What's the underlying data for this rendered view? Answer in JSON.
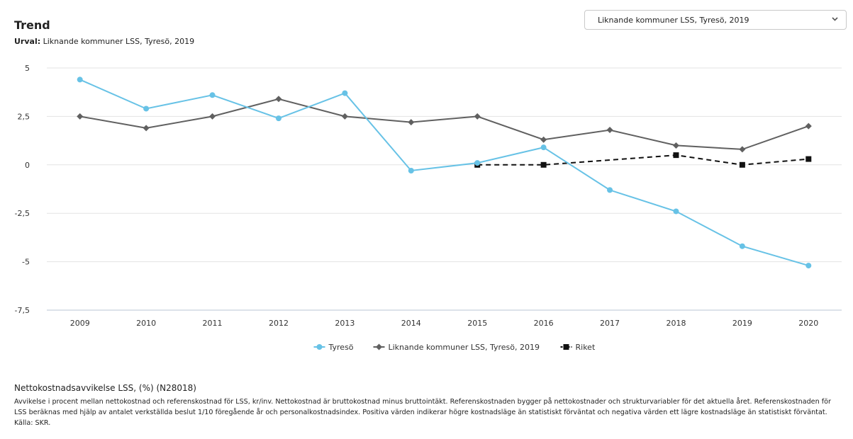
{
  "header": {
    "title": "Trend",
    "subtitle_label": "Urval:",
    "subtitle_value": "Liknande kommuner LSS, Tyresö, 2019"
  },
  "selector": {
    "selected": "Liknande kommuner LSS, Tyresö, 2019",
    "icon": "chevron-down-icon"
  },
  "chart_data": {
    "type": "line",
    "x": [
      "2009",
      "2010",
      "2011",
      "2012",
      "2013",
      "2014",
      "2015",
      "2016",
      "2017",
      "2018",
      "2019",
      "2020"
    ],
    "ylim": [
      -7.5,
      5
    ],
    "yticks": [
      5,
      2.5,
      0,
      -2.5,
      -5,
      -7.5
    ],
    "ytick_labels": [
      "5",
      "2,5",
      "0",
      "-2,5",
      "-5",
      "-7,5"
    ],
    "grid": true,
    "legend_position": "bottom",
    "series": [
      {
        "name": "Tyresö",
        "color": "#67c2e6",
        "marker": "circle",
        "dashed": false,
        "values": [
          4.4,
          2.9,
          3.6,
          2.4,
          3.7,
          -0.3,
          0.1,
          0.9,
          -1.3,
          -2.4,
          -4.2,
          -5.2
        ]
      },
      {
        "name": "Liknande kommuner LSS, Tyresö, 2019",
        "color": "#606060",
        "marker": "diamond",
        "dashed": false,
        "values": [
          2.5,
          1.9,
          2.5,
          3.4,
          2.5,
          2.2,
          2.5,
          1.3,
          1.8,
          1.0,
          0.8,
          2.0
        ]
      },
      {
        "name": "Riket",
        "color": "#111111",
        "marker": "square",
        "dashed": true,
        "values": [
          null,
          null,
          null,
          null,
          null,
          null,
          0.0,
          0.0,
          null,
          0.5,
          0.0,
          0.3
        ]
      }
    ]
  },
  "footer": {
    "title": "Nettokostnadsavvikelse LSS, (%) (N28018)",
    "description": "Avvikelse i procent mellan nettokostnad och referenskostnad för LSS, kr/inv. Nettokostnad är bruttokostnad minus bruttointäkt. Referenskostnaden bygger på nettokostnader och strukturvariabler för det aktuella året. Referenskostnaden för LSS beräknas med hjälp av antalet verkställda beslut 1/10 föregående år och personalkostnadsindex. Positiva värden indikerar högre kostnadsläge än statistiskt förväntat och negativa värden ett lägre kostnadsläge än statistiskt förväntat. Källa: SKR."
  }
}
